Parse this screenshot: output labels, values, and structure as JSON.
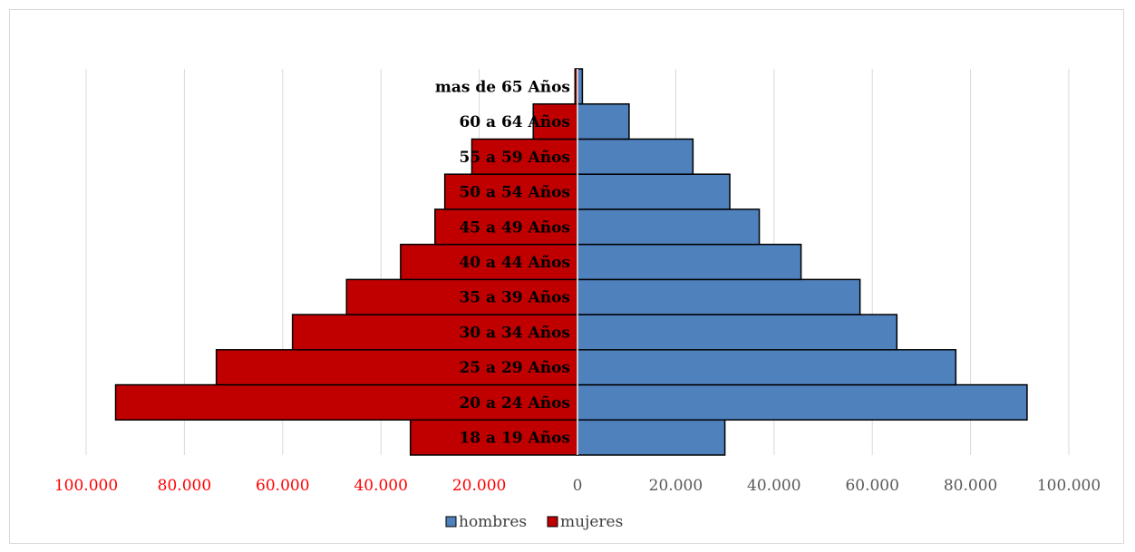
{
  "chart_data": {
    "type": "bar",
    "orientation": "horizontal",
    "subtype": "population-pyramid",
    "categories": [
      "18 a 19 Años",
      "20 a 24 Años",
      "25 a 29 Años",
      "30 a 34 Años",
      "35 a 39 Años",
      "40 a 44 Años",
      "45 a 49 Años",
      "50 a 54 Años",
      "55 a 59 Años",
      "60 a 64 Años",
      "mas de 65 Años"
    ],
    "series": [
      {
        "name": "hombres",
        "color": "#4f81bd",
        "values": [
          30000,
          91500,
          77000,
          65000,
          57500,
          45500,
          37000,
          31000,
          23500,
          10500,
          1000
        ]
      },
      {
        "name": "mujeres",
        "color": "#c00000",
        "values": [
          34000,
          94000,
          73500,
          58000,
          47000,
          36000,
          29000,
          27000,
          21500,
          9000,
          500
        ]
      }
    ],
    "xlim": [
      -100000,
      100000
    ],
    "tick_values": [
      -100000,
      -80000,
      -60000,
      -40000,
      -20000,
      0,
      20000,
      40000,
      60000,
      80000,
      100000
    ],
    "tick_labels": [
      "100.000",
      "80.000",
      "60.000",
      "40.000",
      "20.000",
      "0",
      "20.000",
      "40.000",
      "60.000",
      "80.000",
      "100.000"
    ],
    "negative_tick_color": "#ff0000",
    "positive_tick_color": "#595959",
    "grid": true,
    "legend_position": "bottom",
    "title": "",
    "xlabel": "",
    "ylabel": ""
  }
}
